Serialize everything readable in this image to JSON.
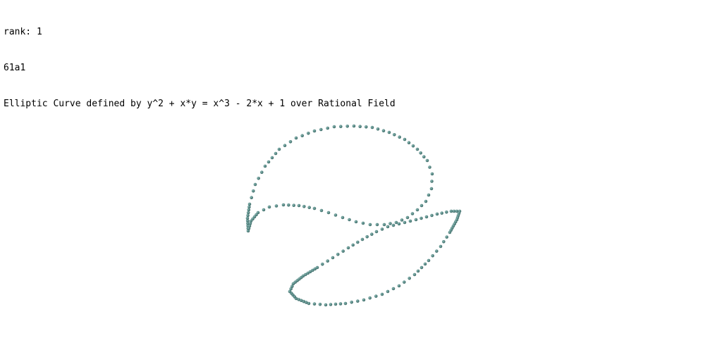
{
  "header": {
    "rank_line": "rank: 1",
    "label_line": "61a1",
    "curve_line": "Elliptic Curve defined by y^2 + x*y = x^3 - 2*x + 1 over Rational Field"
  },
  "curve": {
    "point_color": "#5e8f8b",
    "point_highlight": "#8fbab6",
    "point_shadow": "#3f6b68"
  }
}
